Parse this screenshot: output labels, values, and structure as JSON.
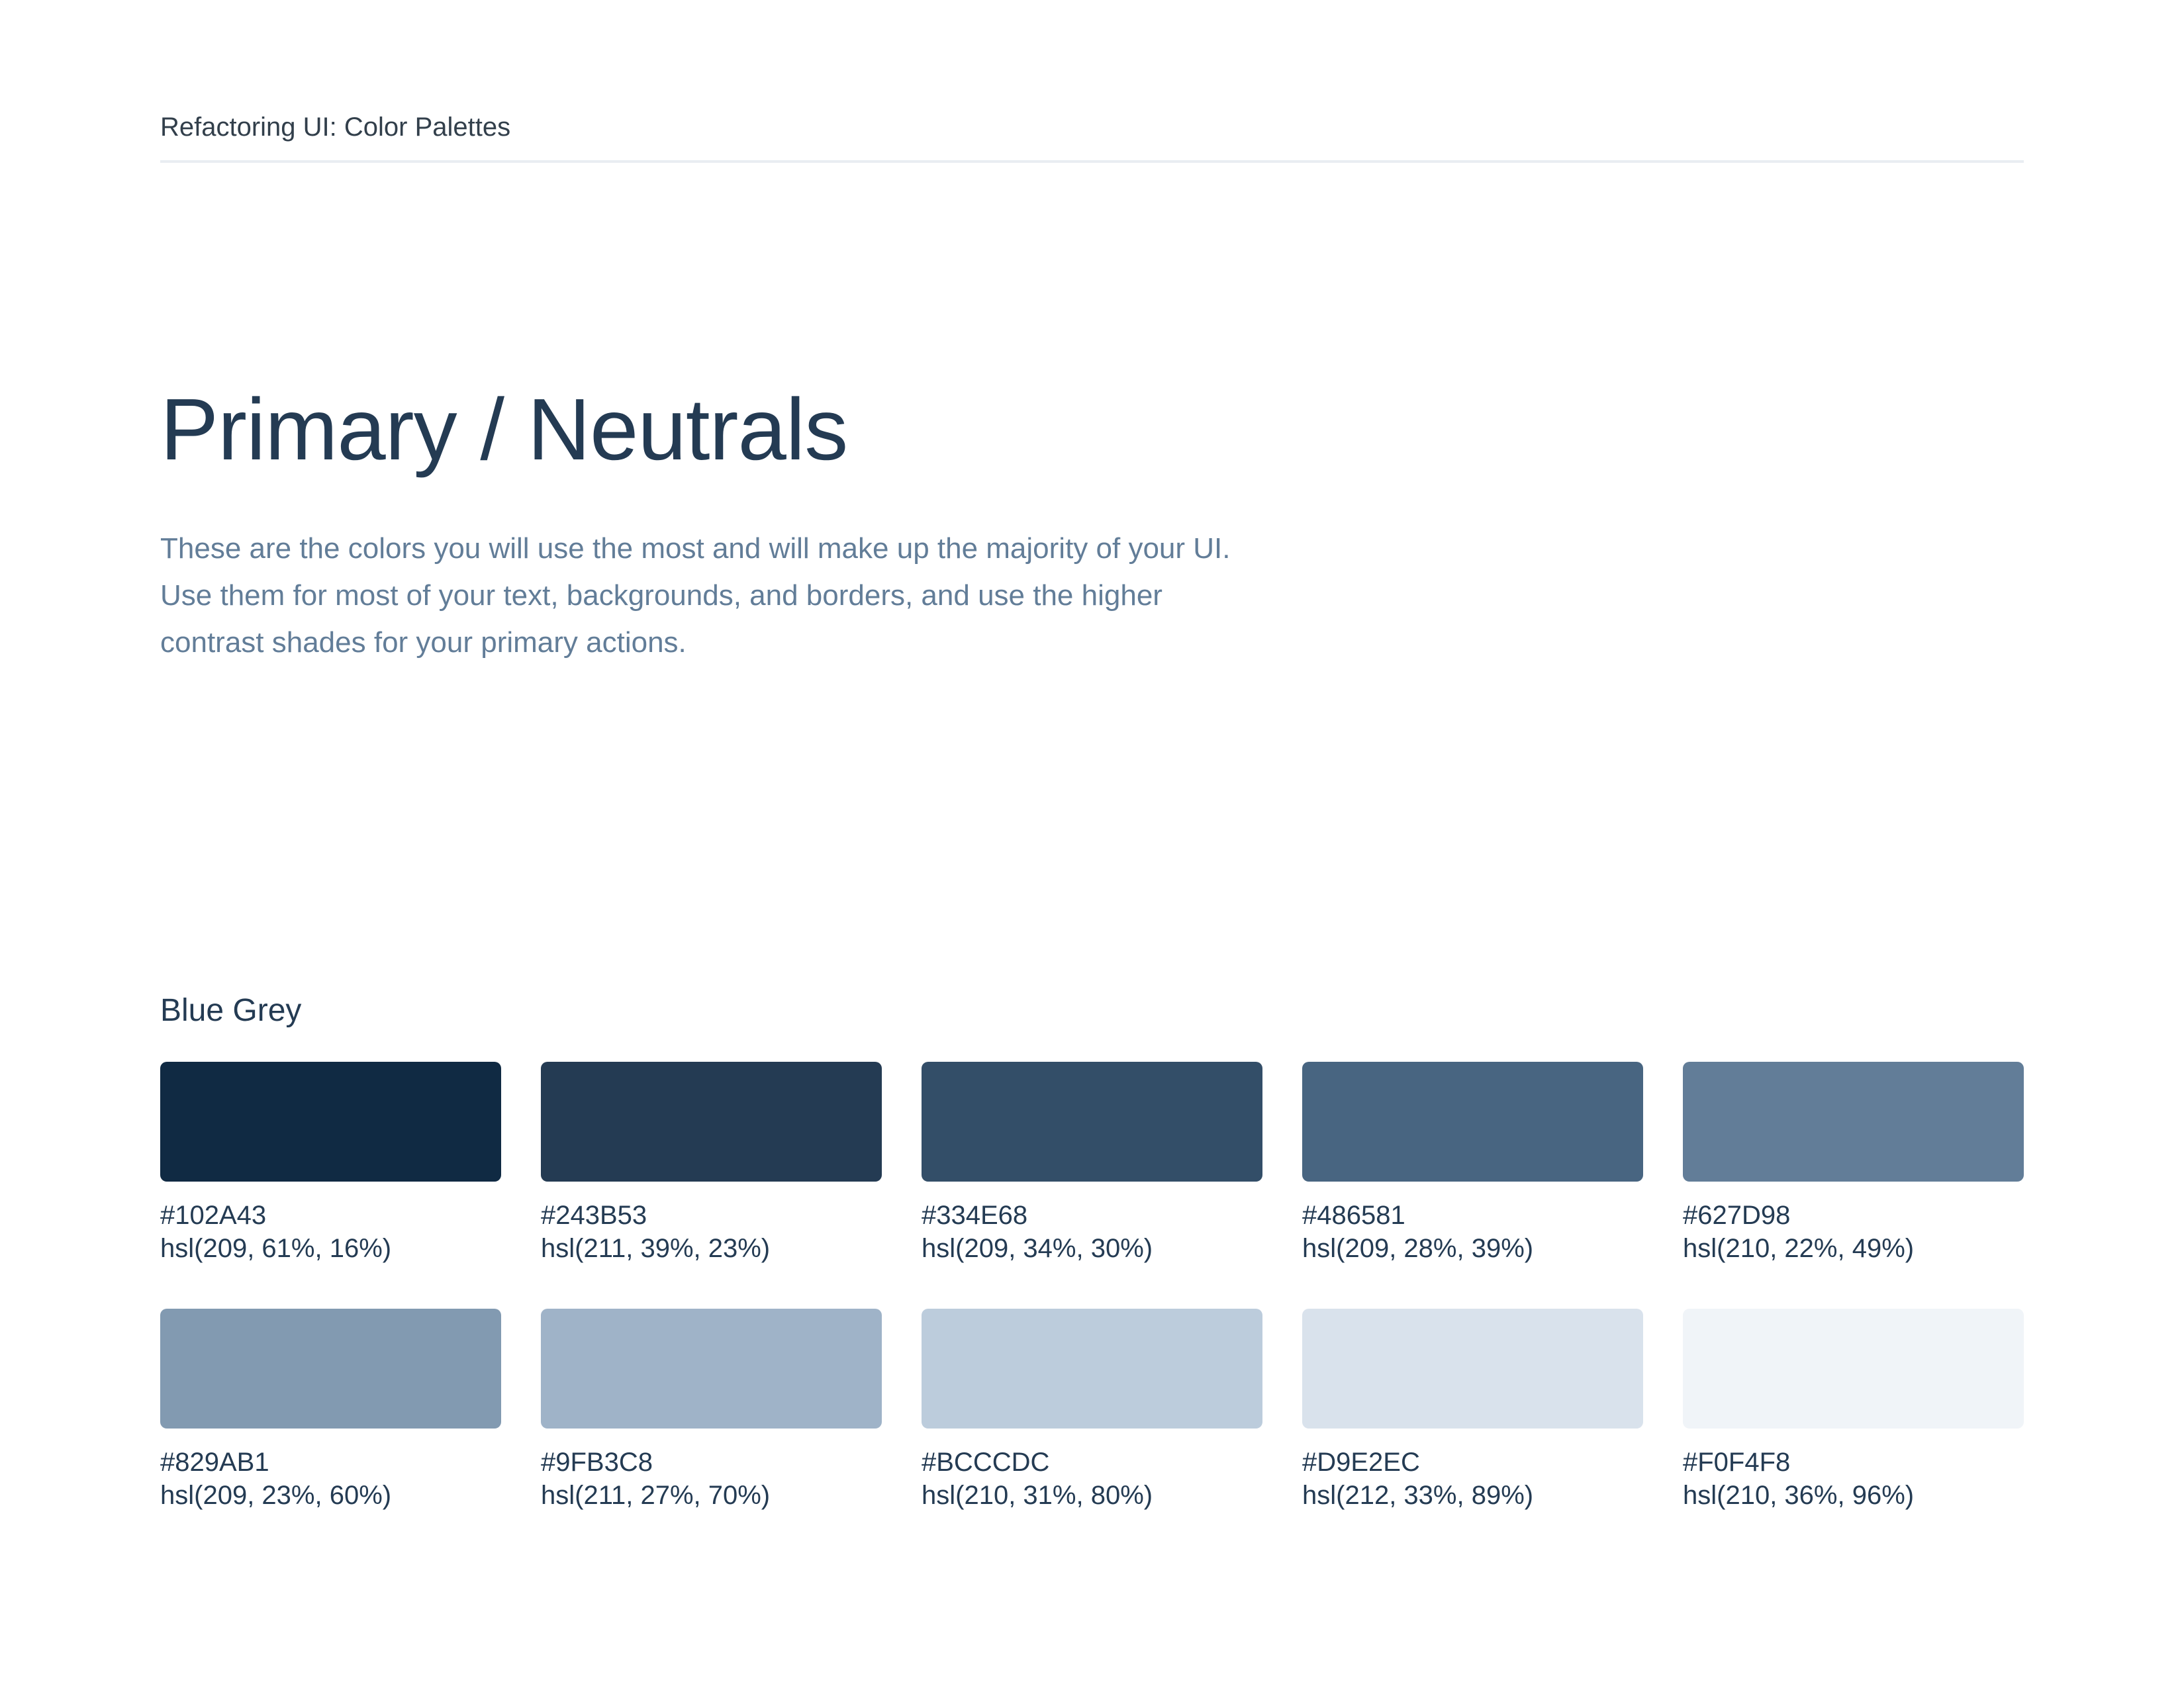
{
  "header": {
    "title": "Refactoring UI: Color Palettes"
  },
  "main": {
    "title": "Primary / Neutrals",
    "description": "These are the colors you will use the most and will make up the majority of your UI. Use them for most of your text, backgrounds, and borders, and use the higher contrast shades for your primary actions."
  },
  "palette": {
    "name": "Blue Grey",
    "swatches": [
      {
        "hex": "#102A43",
        "hsl": "hsl(209, 61%, 16%)"
      },
      {
        "hex": "#243B53",
        "hsl": "hsl(211, 39%, 23%)"
      },
      {
        "hex": "#334E68",
        "hsl": "hsl(209, 34%, 30%)"
      },
      {
        "hex": "#486581",
        "hsl": "hsl(209, 28%, 39%)"
      },
      {
        "hex": "#627D98",
        "hsl": "hsl(210, 22%, 49%)"
      },
      {
        "hex": "#829AB1",
        "hsl": "hsl(209, 23%, 60%)"
      },
      {
        "hex": "#9FB3C8",
        "hsl": "hsl(211, 27%, 70%)"
      },
      {
        "hex": "#BCCCDC",
        "hsl": "hsl(210, 31%, 80%)"
      },
      {
        "hex": "#D9E2EC",
        "hsl": "hsl(212, 33%, 89%)"
      },
      {
        "hex": "#F0F4F8",
        "hsl": "hsl(210, 36%, 96%)"
      }
    ]
  },
  "colors": {
    "page_background": "#FFFFFF",
    "header_text": "#323F4B",
    "heading_text": "#243B53",
    "body_text": "#627D98",
    "label_text": "#243B53",
    "divider": "#E9EDF2"
  }
}
